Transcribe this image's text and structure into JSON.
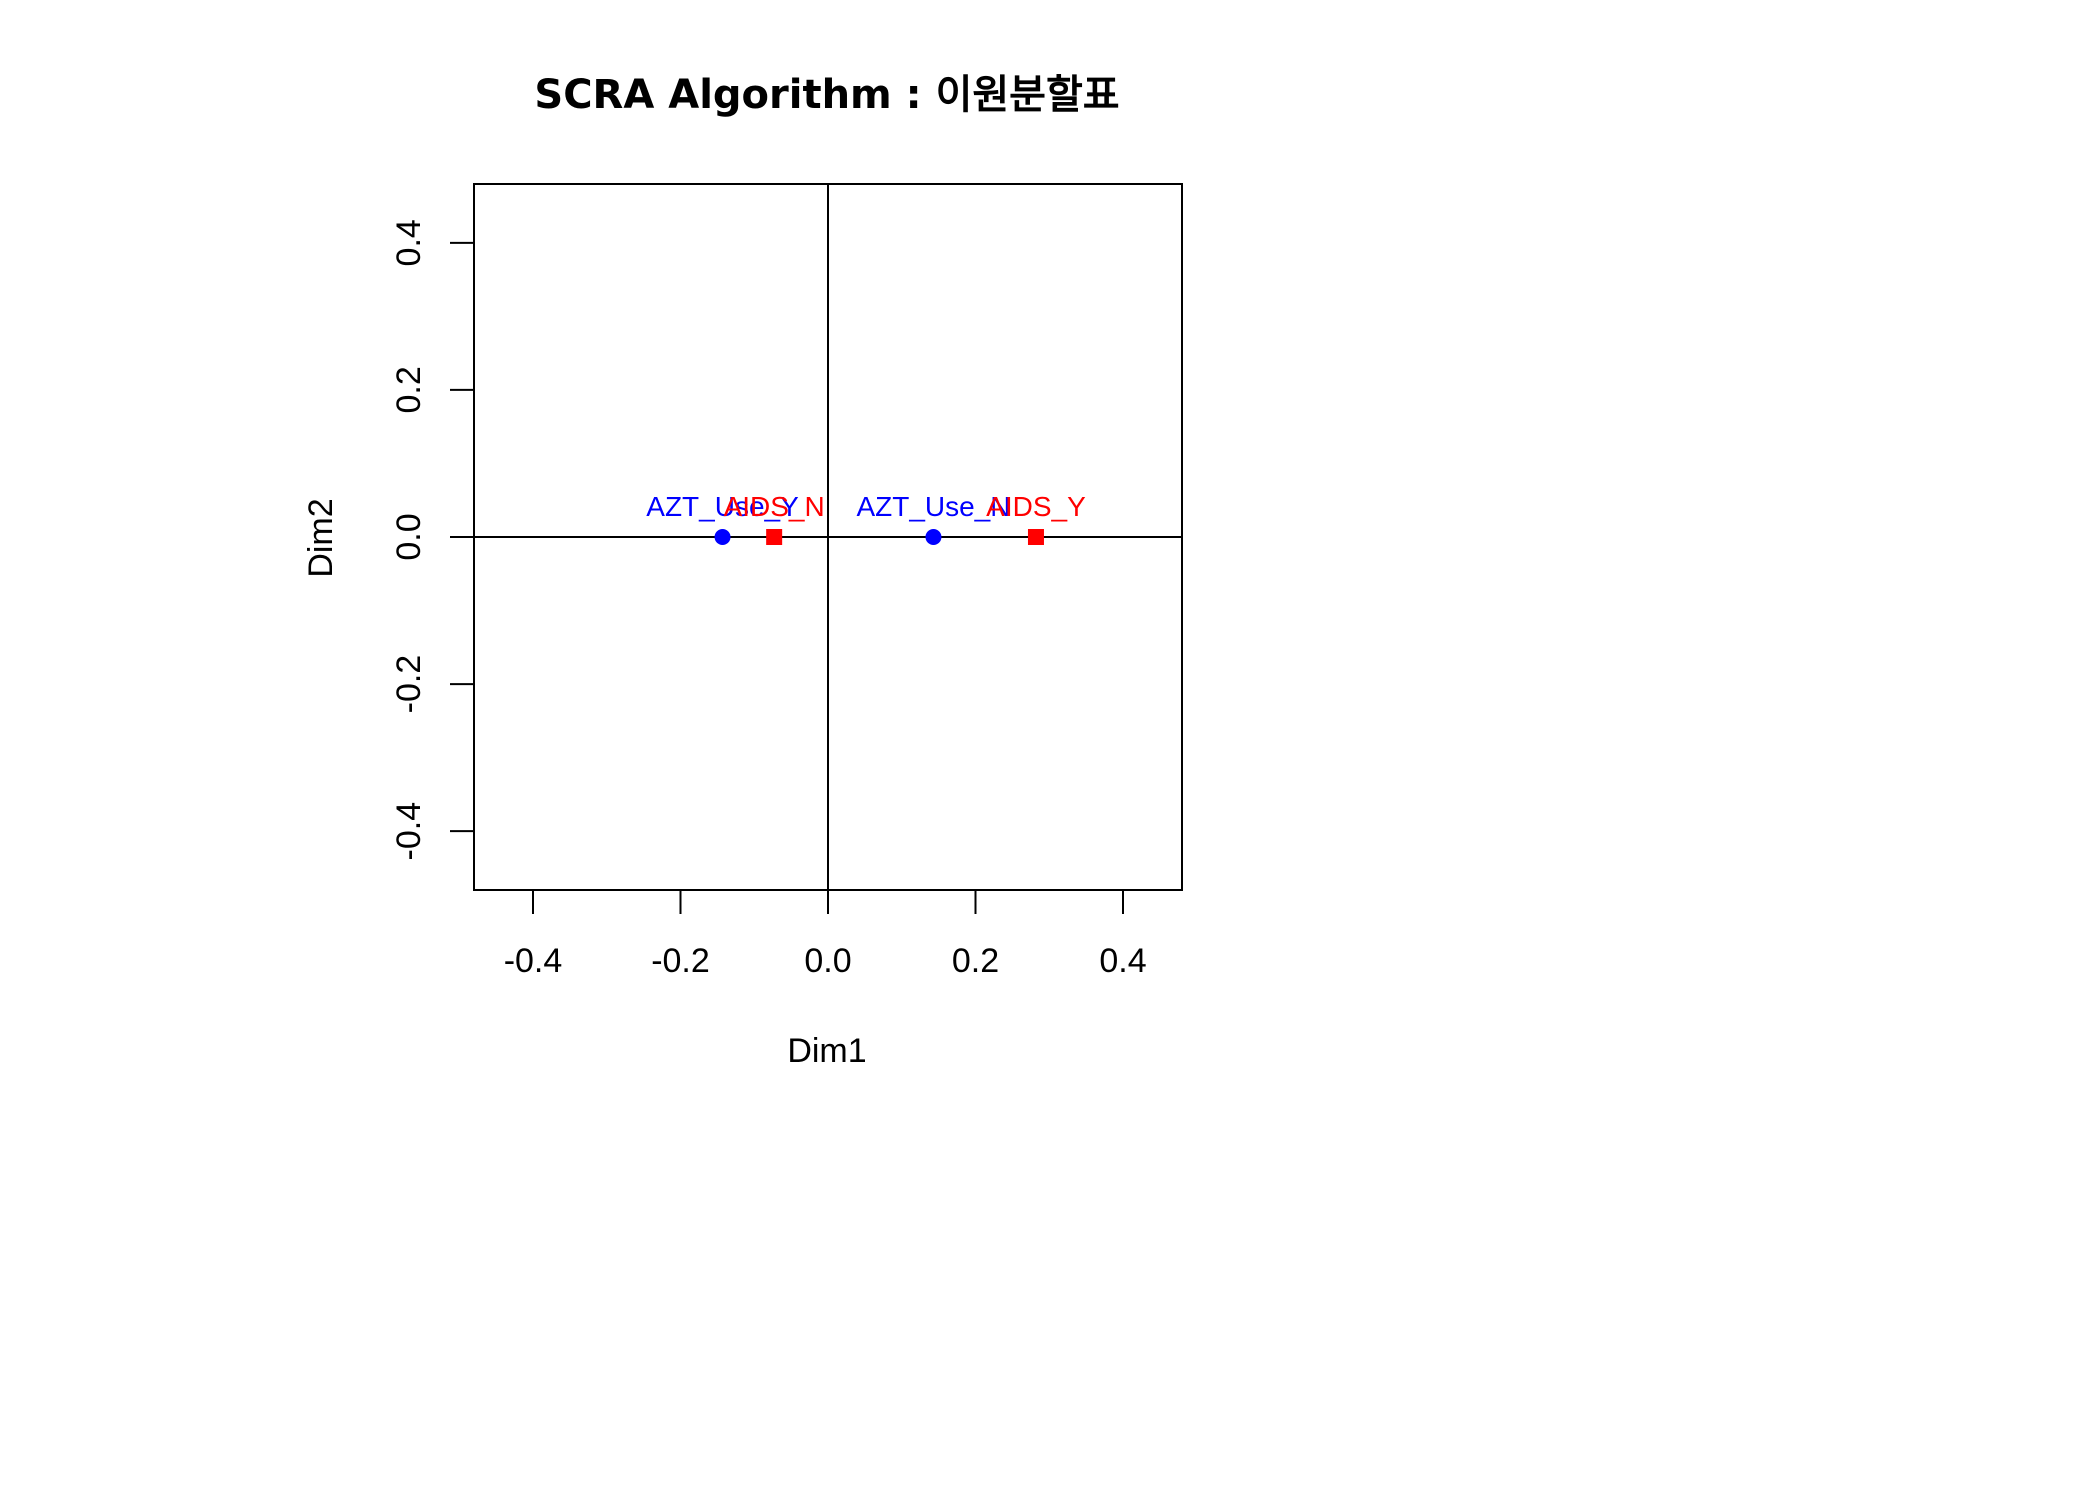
{
  "chart_data": {
    "type": "scatter",
    "title": "SCRA Algorithm : 이원분할표",
    "xlabel": "Dim1",
    "ylabel": "Dim2",
    "xlim": [
      -0.48,
      0.48
    ],
    "ylim": [
      -0.48,
      0.48
    ],
    "xticks": [
      "-0.4",
      "-0.2",
      "0.0",
      "0.2",
      "0.4"
    ],
    "yticks": [
      "-0.4",
      "-0.2",
      "0.0",
      "0.2",
      "0.4"
    ],
    "reference_lines": {
      "x": 0,
      "y": 0
    },
    "grid": false,
    "legend": "none",
    "series": [
      {
        "marker": "circle",
        "color": "#0000ff",
        "points": [
          {
            "label": "AZT_Use_Y",
            "x": -0.143,
            "y": 0.0
          },
          {
            "label": "AZT_Use_N",
            "x": 0.143,
            "y": 0.0
          }
        ]
      },
      {
        "marker": "square",
        "color": "#ff0000",
        "points": [
          {
            "label": "AIDS_N",
            "x": -0.073,
            "y": 0.0
          },
          {
            "label": "AIDS_Y",
            "x": 0.282,
            "y": 0.0
          }
        ]
      }
    ]
  }
}
